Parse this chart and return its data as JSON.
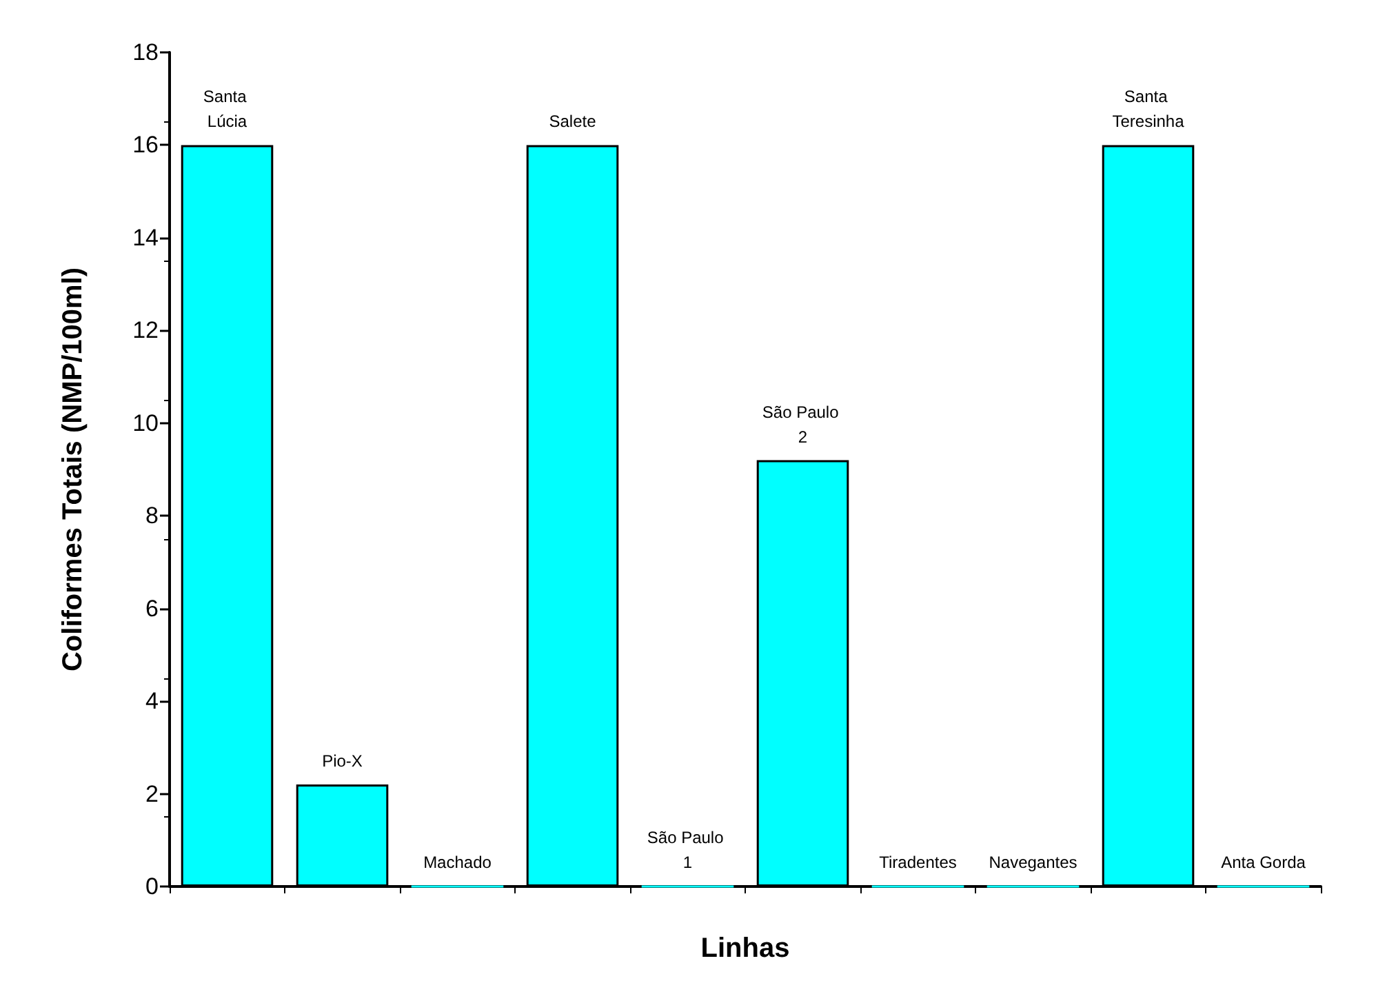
{
  "chart_data": {
    "type": "bar",
    "xlabel": "Linhas",
    "ylabel": "Coliformes Totais (NMP/100ml)",
    "categories": [
      "Santa Lúcia",
      "Pio-X",
      "Machado",
      "Salete",
      "São Paulo 1",
      "São Paulo 2",
      "Tiradentes",
      "Navegantes",
      "Santa Teresinha",
      "Anta Gorda"
    ],
    "values": [
      16,
      2.2,
      0,
      16,
      0,
      9.2,
      0,
      0,
      16,
      0
    ],
    "color": "#00ffff",
    "ylim": [
      0,
      18
    ],
    "yticks": [
      0,
      2,
      4,
      6,
      8,
      10,
      12,
      14,
      16,
      18
    ],
    "grid": false,
    "tick_labels": "y"
  }
}
